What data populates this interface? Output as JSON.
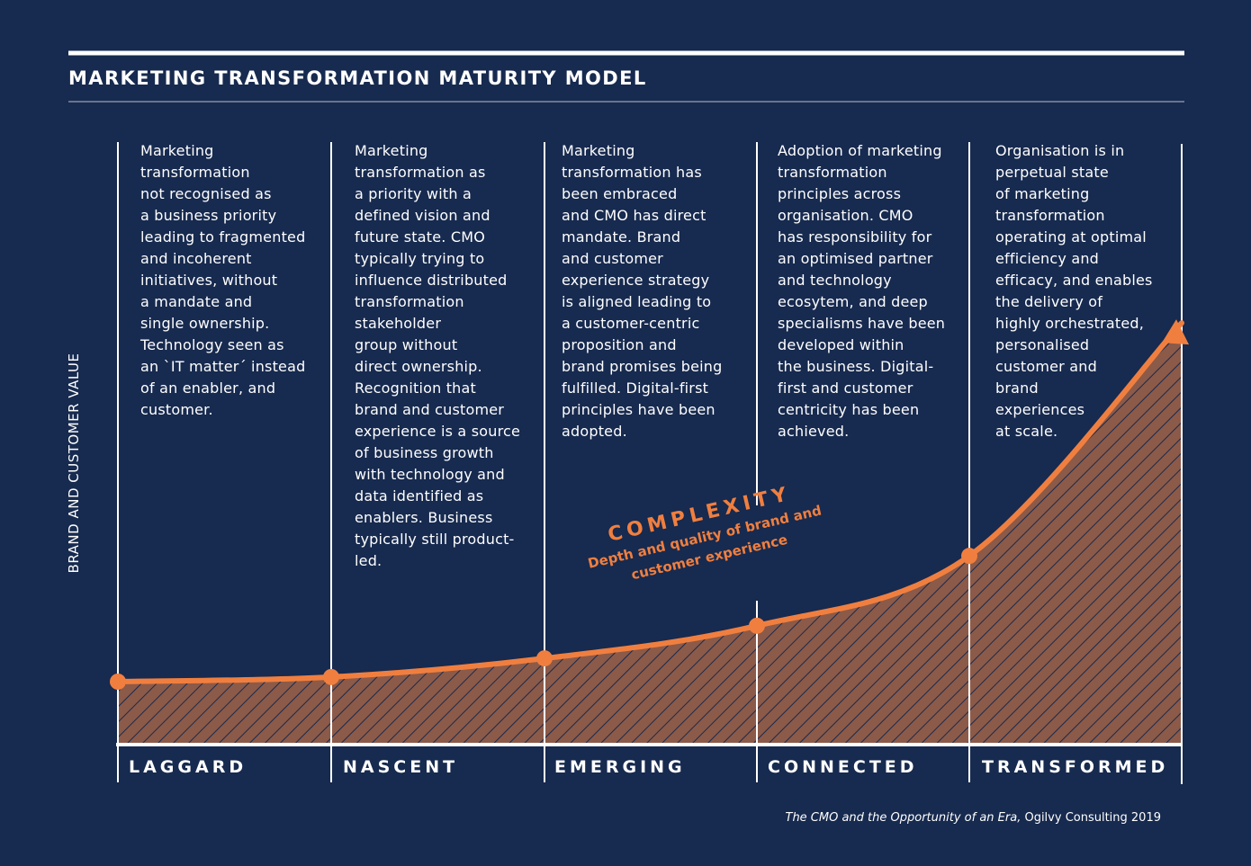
{
  "title": "MARKETING TRANSFORMATION MATURITY MODEL",
  "y_axis_label": "BRAND AND CUSTOMER VALUE",
  "complexity": {
    "label": "COMPLEXITY",
    "sub_line1": "Depth and quality of brand and",
    "sub_line2": "customer experience"
  },
  "stages": [
    {
      "label": "LAGGARD",
      "description": "Marketing\ntransformation\nnot recognised as\na business priority\nleading to fragmented\nand incoherent\ninitiatives, without\na mandate and\nsingle ownership.\nTechnology seen as\nan `IT matter´ instead\nof an enabler, and\ncustomer."
    },
    {
      "label": "NASCENT",
      "description": "Marketing\ntransformation as\na priority with a\ndefined vision and\nfuture state. CMO\ntypically trying to\ninfluence distributed\ntransformation\nstakeholder\ngroup without\ndirect ownership.\nRecognition that\nbrand and customer\nexperience is a source\nof business growth\nwith technology and\ndata identified as\nenablers. Business\ntypically still product-\nled."
    },
    {
      "label": "EMERGING",
      "description": "Marketing\ntransformation has\nbeen embraced\nand CMO has direct\nmandate. Brand\nand customer\nexperience strategy\nis aligned leading to\na customer-centric\nproposition and\nbrand promises being\nfulfilled. Digital-first\nprinciples have been\nadopted."
    },
    {
      "label": "CONNECTED",
      "description": "Adoption of marketing\ntransformation\nprinciples across\norganisation. CMO\nhas responsibility for\nan optimised partner\nand technology\necosytem, and deep\nspecialisms have been\ndeveloped within\nthe business. Digital-\nfirst and customer\ncentricity has been\nachieved."
    },
    {
      "label": "TRANSFORMED",
      "description": "Organisation is in\nperpetual state\nof marketing\ntransformation\noperating at optimal\nefficiency and\nefficacy, and enables\nthe delivery of\nhighly orchestrated,\npersonalised\ncustomer and\nbrand\nexperiences\nat scale."
    }
  ],
  "source": {
    "italic": "The CMO and the Opportunity of an Era,",
    "rest": " Ogilvy Consulting 2019"
  },
  "colors": {
    "background": "#172a4f",
    "accent": "#f07f3f",
    "fill": "#8c5a48",
    "text": "#ffffff"
  },
  "curve_levels": [
    0.0,
    0.01,
    0.05,
    0.12,
    0.27,
    0.77
  ]
}
